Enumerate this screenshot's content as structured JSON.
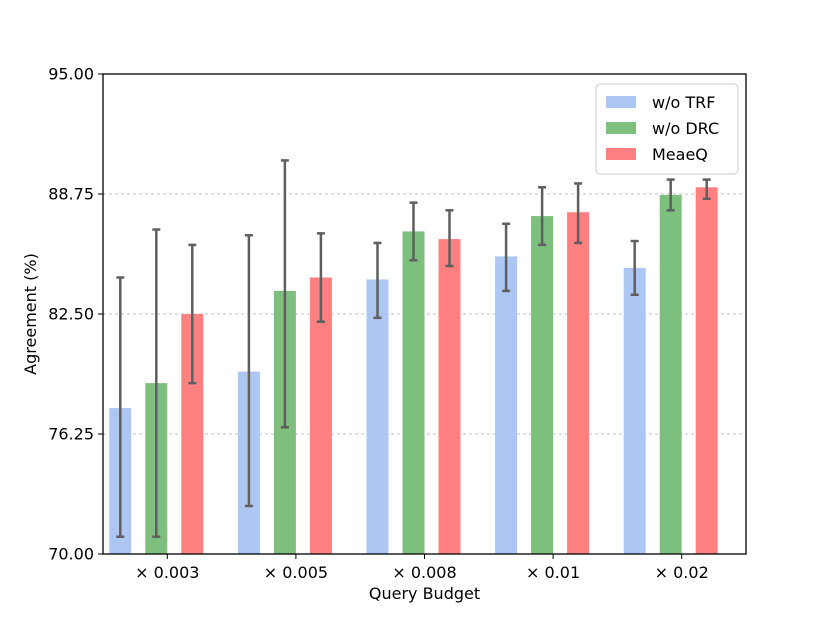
{
  "chart_data": {
    "type": "bar",
    "title": "",
    "xlabel": "Query Budget",
    "ylabel": "Agreement (%)",
    "ylim": [
      70.0,
      95.0
    ],
    "yticks": [
      "70.00",
      "76.25",
      "82.50",
      "88.75",
      "95.00"
    ],
    "ytick_values": [
      70.0,
      76.25,
      82.5,
      88.75,
      95.0
    ],
    "grid": "horizontal dashed",
    "legend_position": "top-right",
    "categories": [
      "× 0.003",
      "× 0.005",
      "× 0.008",
      "× 0.01",
      "× 0.02"
    ],
    "series": [
      {
        "name": "w/o TRF",
        "color": "#aec7f2",
        "values": [
          77.6,
          79.5,
          84.3,
          85.5,
          84.9
        ],
        "error_low": [
          70.9,
          72.5,
          82.3,
          83.7,
          83.5
        ],
        "error_high": [
          84.4,
          86.6,
          86.2,
          87.2,
          86.3
        ]
      },
      {
        "name": "w/o DRC",
        "color": "#7dbf7d",
        "values": [
          78.9,
          83.7,
          86.8,
          87.6,
          88.7
        ],
        "error_low": [
          70.9,
          76.6,
          85.3,
          86.1,
          87.9
        ],
        "error_high": [
          86.9,
          90.5,
          88.3,
          89.1,
          89.5
        ]
      },
      {
        "name": "MeaeQ",
        "color": "#ff8080",
        "values": [
          82.5,
          84.4,
          86.4,
          87.8,
          89.1
        ],
        "error_low": [
          78.9,
          82.1,
          85.0,
          86.2,
          88.5
        ],
        "error_high": [
          86.1,
          86.7,
          87.9,
          89.3,
          89.5
        ]
      }
    ]
  }
}
